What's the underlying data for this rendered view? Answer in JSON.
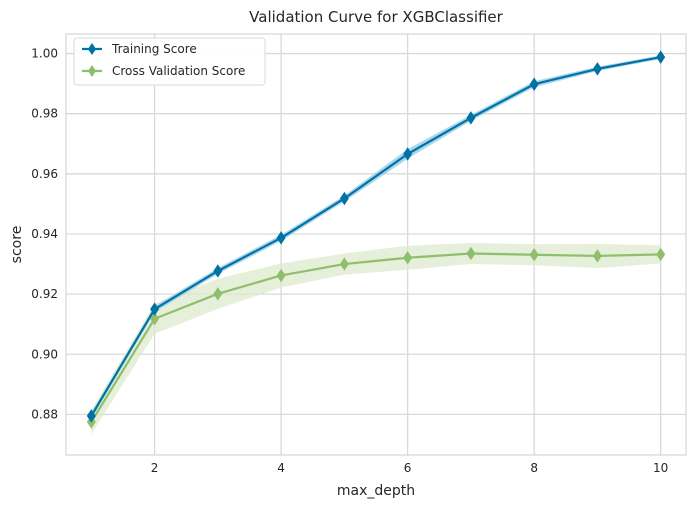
{
  "chart_data": {
    "type": "line",
    "title": "Validation Curve for XGBClassifier",
    "xlabel": "max_depth",
    "ylabel": "score",
    "xlim": [
      0.6,
      10.4
    ],
    "ylim": [
      0.8665,
      1.0065
    ],
    "x": [
      1,
      2,
      3,
      4,
      5,
      6,
      7,
      8,
      9,
      10
    ],
    "xticks": [
      2,
      4,
      6,
      8,
      10
    ],
    "xtick_labels": [
      "2",
      "4",
      "6",
      "8",
      "10"
    ],
    "yticks": [
      0.88,
      0.9,
      0.92,
      0.94,
      0.96,
      0.98,
      1.0
    ],
    "ytick_labels": [
      "0.88",
      "0.90",
      "0.92",
      "0.94",
      "0.96",
      "0.98",
      "1.00"
    ],
    "grid": true,
    "legend_position": "top-left",
    "series": [
      {
        "name": "Training Score",
        "color": "#0072a6",
        "band_color": "#8ecae6",
        "marker": "diamond",
        "values": [
          0.8795,
          0.915,
          0.9277,
          0.9387,
          0.9518,
          0.9666,
          0.9786,
          0.9898,
          0.9949,
          0.9988
        ],
        "lower": [
          0.8785,
          0.914,
          0.9267,
          0.9377,
          0.9508,
          0.965,
          0.9776,
          0.9888,
          0.9942,
          0.9982
        ],
        "upper": [
          0.8805,
          0.916,
          0.9287,
          0.9397,
          0.9528,
          0.9682,
          0.9796,
          0.9908,
          0.9956,
          0.9994
        ]
      },
      {
        "name": "Cross Validation Score",
        "color": "#8fbf6c",
        "band_color": "#dce9cd",
        "marker": "diamond",
        "values": [
          0.8775,
          0.9118,
          0.9201,
          0.9262,
          0.93,
          0.9321,
          0.9335,
          0.9331,
          0.9327,
          0.9332
        ],
        "lower": [
          0.8735,
          0.9068,
          0.9151,
          0.9222,
          0.9265,
          0.9281,
          0.93,
          0.9296,
          0.9287,
          0.9302
        ],
        "upper": [
          0.8815,
          0.9168,
          0.9251,
          0.9302,
          0.9335,
          0.9361,
          0.937,
          0.9366,
          0.9367,
          0.9362
        ]
      }
    ]
  }
}
